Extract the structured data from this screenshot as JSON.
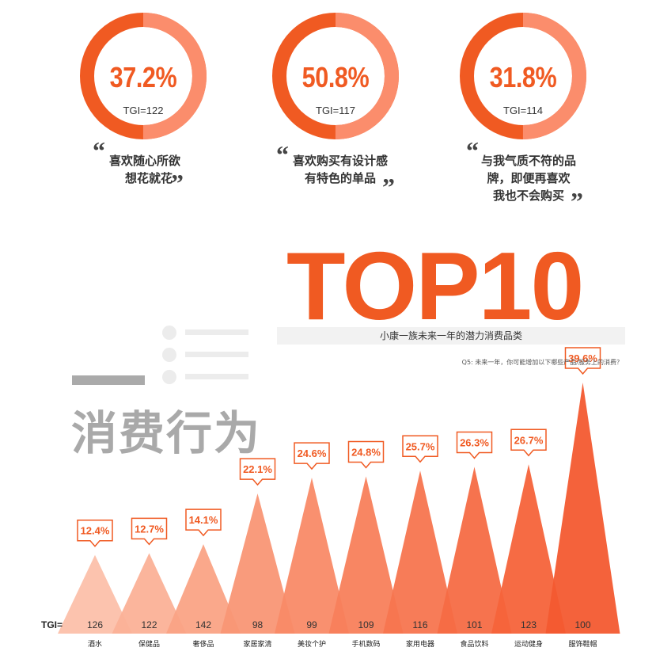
{
  "donuts": [
    {
      "pct": "37.2%",
      "value": 37.2,
      "tgi": "TGI=122",
      "quote": [
        "喜欢随心所欲",
        "想花就花"
      ]
    },
    {
      "pct": "50.8%",
      "value": 50.8,
      "tgi": "TGI=117",
      "quote": [
        "喜欢购买有设计感",
        "有特色的单品"
      ]
    },
    {
      "pct": "31.8%",
      "value": 31.8,
      "tgi": "TGI=114",
      "quote": [
        "与我气质不符的品",
        "牌，即便再喜欢",
        "我也不会购买"
      ]
    }
  ],
  "quote_open": "“",
  "quote_close": "”",
  "heading": "TOP10",
  "subtitle": "小康一族未来一年的潜力消费品类",
  "question": "Q5: 未来一年，你可能增加以下哪些产品/服务上的消费？",
  "section_title": "消费行为",
  "tgi_label": "TGI=",
  "colors": {
    "accent": "#f05a22",
    "light": "#fb8d6c",
    "grey": "#a9a9a9"
  },
  "chart_data": {
    "type": "bar",
    "title": "小康一族未来一年的潜力消费品类",
    "categories": [
      "酒水",
      "保健品",
      "奢侈品",
      "家居家清",
      "美妆个护",
      "手机数码",
      "家用电器",
      "食品饮料",
      "运动健身",
      "服饰鞋帽"
    ],
    "values": [
      12.4,
      12.7,
      14.1,
      22.1,
      24.6,
      24.8,
      25.7,
      26.3,
      26.7,
      39.6
    ],
    "value_labels": [
      "12.4%",
      "12.7%",
      "14.1%",
      "22.1%",
      "24.6%",
      "24.8%",
      "25.7%",
      "26.3%",
      "26.7%",
      "39.6%"
    ],
    "tgi": [
      "126",
      "122",
      "142",
      "98",
      "99",
      "109",
      "116",
      "101",
      "123",
      "100"
    ],
    "colors": [
      "#fcc0aa",
      "#fbb197",
      "#faa385",
      "#f99675",
      "#f98a67",
      "#f87f5b",
      "#f7754f",
      "#f66c44",
      "#f5633a",
      "#f35a30"
    ]
  }
}
